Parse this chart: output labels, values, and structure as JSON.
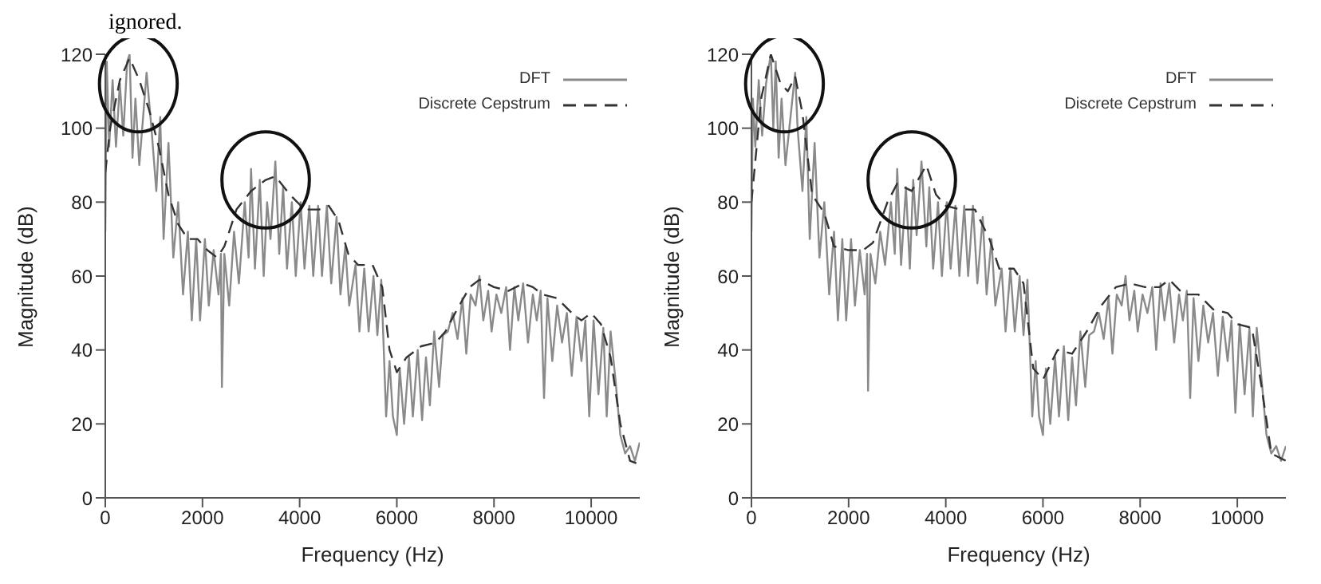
{
  "chart_data": [
    {
      "type": "line",
      "annotations": [
        "ignored."
      ],
      "xlabel": "Frequency (Hz)",
      "ylabel": "Magnitude (dB)",
      "xlim": [
        0,
        11000
      ],
      "ylim": [
        0,
        120
      ],
      "xticks": [
        0,
        2000,
        4000,
        6000,
        8000,
        10000
      ],
      "yticks": [
        0,
        20,
        40,
        60,
        80,
        100,
        120
      ],
      "legend": "top right",
      "marker": "none",
      "series": [
        {
          "name": "DFT",
          "color": "#8a8a8a",
          "line_style": "solid",
          "x": [
            0,
            30,
            80,
            150,
            220,
            300,
            370,
            450,
            500,
            560,
            620,
            700,
            850,
            950,
            1050,
            1130,
            1200,
            1300,
            1400,
            1500,
            1600,
            1700,
            1780,
            1870,
            1950,
            2050,
            2130,
            2230,
            2330,
            2380,
            2400,
            2450,
            2550,
            2650,
            2750,
            2870,
            2950,
            3000,
            3080,
            3180,
            3260,
            3330,
            3400,
            3500,
            3580,
            3660,
            3740,
            3840,
            3920,
            4020,
            4100,
            4200,
            4280,
            4380,
            4460,
            4560,
            4650,
            4760,
            4840,
            4940,
            5020,
            5150,
            5230,
            5330,
            5420,
            5520,
            5600,
            5680,
            5780,
            5850,
            5920,
            6000,
            6060,
            6150,
            6250,
            6330,
            6430,
            6520,
            6600,
            6680,
            6770,
            6870,
            6950,
            7050,
            7150,
            7250,
            7350,
            7430,
            7520,
            7620,
            7700,
            7780,
            7880,
            7950,
            8050,
            8150,
            8250,
            8330,
            8420,
            8500,
            8600,
            8700,
            8800,
            8880,
            8960,
            9030,
            9100,
            9200,
            9300,
            9400,
            9500,
            9600,
            9700,
            9800,
            9880,
            9960,
            10050,
            10150,
            10250,
            10320,
            10400,
            10500,
            10600,
            10700,
            10800,
            10900,
            11000
          ],
          "values": [
            72,
            118,
            95,
            113,
            95,
            112,
            98,
            118,
            120,
            92,
            108,
            90,
            115,
            100,
            83,
            103,
            70,
            96,
            65,
            80,
            55,
            72,
            48,
            70,
            48,
            70,
            52,
            67,
            55,
            66,
            30,
            66,
            52,
            72,
            58,
            80,
            65,
            89,
            62,
            86,
            60,
            80,
            70,
            91,
            66,
            84,
            62,
            80,
            60,
            80,
            62,
            79,
            60,
            79,
            60,
            79,
            58,
            76,
            55,
            68,
            52,
            63,
            45,
            62,
            45,
            60,
            44,
            59,
            22,
            37,
            22,
            17,
            35,
            20,
            38,
            22,
            40,
            21,
            38,
            25,
            45,
            30,
            44,
            45,
            50,
            43,
            54,
            39,
            55,
            52,
            60,
            48,
            56,
            45,
            55,
            50,
            57,
            40,
            57,
            48,
            58,
            42,
            55,
            48,
            56,
            27,
            54,
            37,
            52,
            42,
            50,
            33,
            49,
            37,
            48,
            22,
            48,
            28,
            46,
            22,
            45,
            32,
            17,
            12,
            14,
            10,
            15
          ]
        },
        {
          "name": "Discrete Cepstrum",
          "color": "#333333",
          "line_style": "dashed",
          "x": [
            0,
            100,
            300,
            500,
            700,
            900,
            1100,
            1300,
            1500,
            1700,
            1900,
            2100,
            2300,
            2450,
            2700,
            3000,
            3300,
            3500,
            3800,
            4100,
            4400,
            4600,
            4800,
            5000,
            5200,
            5500,
            5700,
            5850,
            6000,
            6200,
            6500,
            6800,
            7000,
            7200,
            7500,
            7700,
            8000,
            8300,
            8600,
            8800,
            9000,
            9300,
            9600,
            9800,
            10000,
            10200,
            10400,
            10600,
            10800,
            11000
          ],
          "values": [
            88,
            100,
            113,
            119,
            113,
            105,
            95,
            82,
            74,
            70,
            70,
            67,
            65,
            68,
            78,
            83,
            86,
            87,
            82,
            78,
            78,
            79,
            75,
            66,
            63,
            63,
            57,
            40,
            34,
            38,
            41,
            42,
            45,
            50,
            57,
            59,
            57,
            56,
            58,
            57,
            55,
            54,
            50,
            48,
            50,
            47,
            38,
            20,
            10,
            9
          ]
        }
      ]
    },
    {
      "type": "line",
      "xlabel": "Frequency (Hz)",
      "ylabel": "Magnitude (dB)",
      "xlim": [
        0,
        11000
      ],
      "ylim": [
        0,
        120
      ],
      "xticks": [
        0,
        2000,
        4000,
        6000,
        8000,
        10000
      ],
      "yticks": [
        0,
        20,
        40,
        60,
        80,
        100,
        120
      ],
      "legend": "top right",
      "marker": "none",
      "series": [
        {
          "name": "DFT",
          "color": "#8a8a8a",
          "line_style": "solid",
          "x": [
            0,
            30,
            80,
            150,
            220,
            300,
            400,
            450,
            500,
            560,
            620,
            700,
            900,
            950,
            1050,
            1130,
            1200,
            1300,
            1400,
            1500,
            1600,
            1700,
            1780,
            1870,
            1950,
            2050,
            2130,
            2230,
            2330,
            2380,
            2400,
            2450,
            2550,
            2650,
            2750,
            2870,
            2950,
            3000,
            3080,
            3180,
            3260,
            3330,
            3400,
            3500,
            3600,
            3660,
            3740,
            3840,
            3920,
            4020,
            4100,
            4200,
            4280,
            4380,
            4460,
            4560,
            4650,
            4760,
            4840,
            4940,
            5020,
            5150,
            5230,
            5330,
            5420,
            5520,
            5600,
            5680,
            5780,
            5850,
            5920,
            6000,
            6060,
            6150,
            6250,
            6330,
            6430,
            6520,
            6600,
            6680,
            6770,
            6870,
            6950,
            7050,
            7150,
            7250,
            7350,
            7430,
            7520,
            7620,
            7700,
            7780,
            7880,
            7950,
            8050,
            8150,
            8250,
            8330,
            8420,
            8500,
            8600,
            8700,
            8800,
            8880,
            8960,
            9030,
            9100,
            9200,
            9300,
            9400,
            9500,
            9600,
            9700,
            9800,
            9880,
            9960,
            10050,
            10150,
            10250,
            10320,
            10400,
            10500,
            10600,
            10700,
            10800,
            10900,
            11000
          ],
          "values": [
            72,
            108,
            95,
            113,
            98,
            112,
            120,
            100,
            118,
            92,
            108,
            90,
            115,
            100,
            83,
            103,
            70,
            96,
            65,
            80,
            55,
            72,
            48,
            70,
            48,
            70,
            52,
            67,
            55,
            66,
            29,
            66,
            58,
            72,
            63,
            80,
            66,
            89,
            63,
            84,
            62,
            86,
            71,
            91,
            68,
            84,
            62,
            80,
            60,
            80,
            62,
            79,
            60,
            79,
            60,
            79,
            58,
            76,
            55,
            70,
            52,
            62,
            45,
            62,
            45,
            60,
            44,
            59,
            22,
            37,
            22,
            17,
            35,
            20,
            38,
            22,
            41,
            21,
            38,
            25,
            45,
            30,
            44,
            45,
            50,
            43,
            54,
            39,
            55,
            52,
            60,
            48,
            56,
            45,
            55,
            50,
            57,
            40,
            58,
            48,
            58,
            42,
            55,
            48,
            56,
            27,
            54,
            37,
            52,
            42,
            50,
            33,
            49,
            37,
            48,
            23,
            47,
            28,
            46,
            22,
            46,
            32,
            17,
            12,
            14,
            10,
            14
          ]
        },
        {
          "name": "Discrete Cepstrum",
          "color": "#333333",
          "line_style": "dashed",
          "x": [
            0,
            200,
            400,
            600,
            750,
            900,
            1050,
            1250,
            1500,
            1700,
            2000,
            2300,
            2500,
            2800,
            3000,
            3300,
            3600,
            3800,
            4000,
            4300,
            4600,
            4900,
            5100,
            5400,
            5600,
            5800,
            6000,
            6300,
            6600,
            6900,
            7200,
            7500,
            7800,
            8100,
            8400,
            8600,
            8900,
            9200,
            9500,
            9800,
            10000,
            10300,
            10500,
            10700,
            11000
          ],
          "values": [
            80,
            108,
            120,
            112,
            110,
            114,
            104,
            82,
            77,
            68,
            67,
            67,
            69,
            80,
            85,
            83,
            90,
            82,
            79,
            78,
            78,
            70,
            62,
            62,
            58,
            35,
            32,
            40,
            39,
            45,
            52,
            57,
            58,
            57,
            57,
            59,
            55,
            55,
            51,
            50,
            47,
            46,
            30,
            12,
            10
          ]
        }
      ]
    }
  ]
}
